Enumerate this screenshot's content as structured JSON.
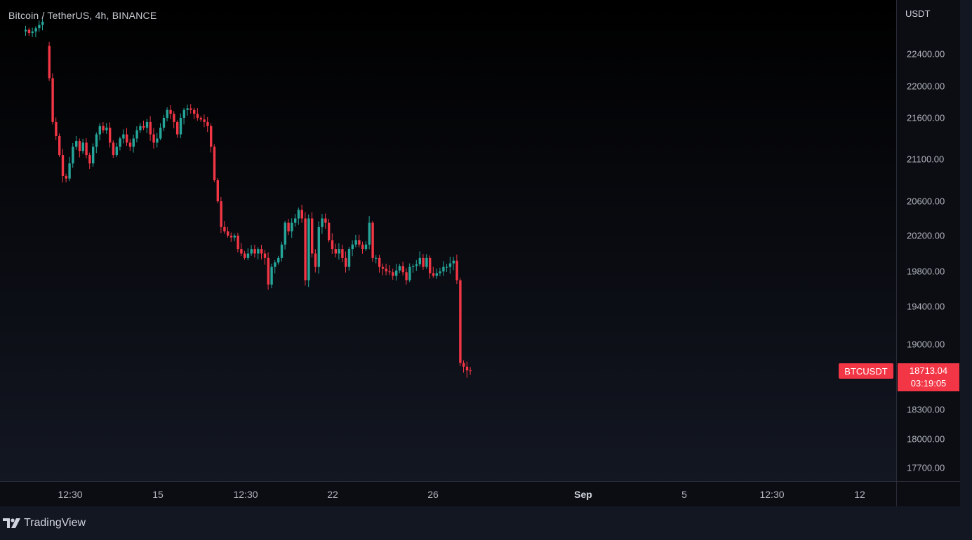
{
  "header": {
    "symbol_description": "Bitcoin / TetherUS, 4h, BINANCE"
  },
  "price_axis": {
    "currency": "USDT",
    "current_symbol": "BTCUSDT",
    "current_price": "18713.04",
    "countdown": "03:19:05"
  },
  "branding": {
    "logo_text": "TradingView"
  },
  "colors": {
    "up": "#26a69a",
    "down": "#f23645",
    "background": "#131722"
  },
  "chart_data": {
    "type": "candlestick",
    "ylim": [
      17500,
      22650
    ],
    "y_ticks": [
      "22400.00",
      "22000.00",
      "21600.00",
      "21100.00",
      "20600.00",
      "20200.00",
      "19800.00",
      "19400.00",
      "19000.00",
      "18300.00",
      "18000.00",
      "17700.00"
    ],
    "x_ticks": [
      {
        "label": "12:30",
        "bold": false
      },
      {
        "label": "15",
        "bold": false
      },
      {
        "label": "12:30",
        "bold": false
      },
      {
        "label": "22",
        "bold": false
      },
      {
        "label": "26",
        "bold": false
      },
      {
        "label": "Sep",
        "bold": true
      },
      {
        "label": "5",
        "bold": false
      },
      {
        "label": "12:30",
        "bold": false
      },
      {
        "label": "12",
        "bold": false
      }
    ],
    "closes": [
      22680,
      22700,
      22660,
      22680,
      22720,
      22760,
      22800,
      22500,
      22100,
      21550,
      21380,
      21150,
      20900,
      20870,
      21050,
      21250,
      21320,
      21200,
      21300,
      21150,
      21050,
      21250,
      21400,
      21500,
      21450,
      21480,
      21300,
      21150,
      21250,
      21350,
      21400,
      21300,
      21250,
      21350,
      21450,
      21500,
      21480,
      21550,
      21400,
      21300,
      21350,
      21480,
      21600,
      21700,
      21650,
      21550,
      21400,
      21600,
      21700,
      21720,
      21700,
      21650,
      21600,
      21580,
      21550,
      21500,
      21250,
      20850,
      20600,
      20300,
      20250,
      20200,
      20180,
      20200,
      20050,
      20000,
      19950,
      20000,
      20050,
      20000,
      20050,
      20000,
      19950,
      19650,
      19850,
      19900,
      19950,
      20100,
      20350,
      20250,
      20350,
      20400,
      20500,
      20400,
      19700,
      20400,
      20000,
      19850,
      20300,
      20400,
      20350,
      20150,
      20050,
      20000,
      20050,
      19950,
      19850,
      20050,
      20100,
      20150,
      20100,
      20050,
      20100,
      20350,
      19950,
      19950,
      19850,
      19830,
      19800,
      19790,
      19750,
      19810,
      19860,
      19790,
      19700,
      19850,
      19860,
      19880,
      19950,
      19850,
      19950,
      19780,
      19750,
      19780,
      19800,
      19850,
      19850,
      19890,
      19920,
      19700,
      18800,
      18760,
      18720,
      18713
    ]
  }
}
